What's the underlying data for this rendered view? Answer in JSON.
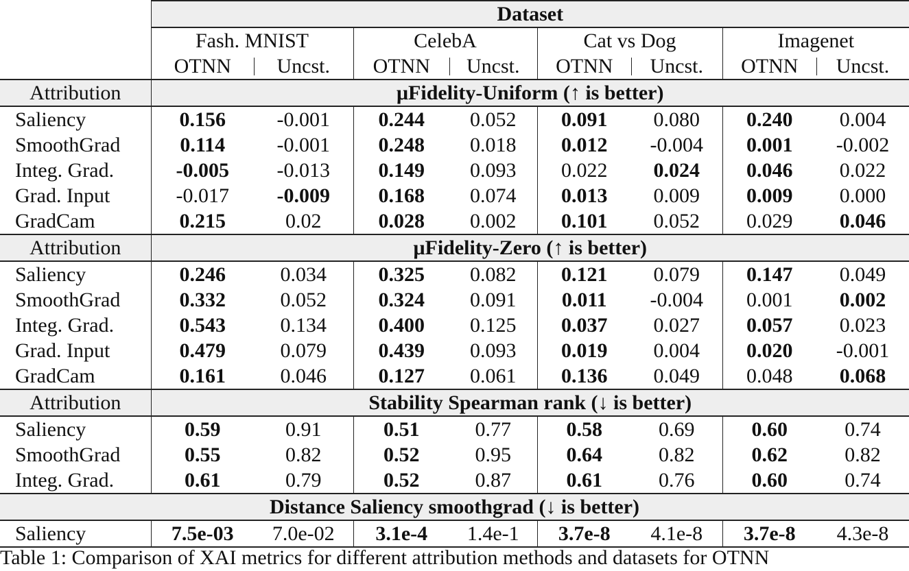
{
  "header": {
    "dataset_label": "Dataset",
    "datasets": [
      "Fash. MNIST",
      "CelebA",
      "Cat vs Dog",
      "Imagenet"
    ],
    "sub_columns": [
      "OTNN",
      "Uncst."
    ]
  },
  "sections": [
    {
      "left_label": "Attribution",
      "title": "μFidelity-Uniform (↑ is better)",
      "rows": [
        {
          "name": "Saliency",
          "values": [
            "0.156",
            "-0.001",
            "0.244",
            "0.052",
            "0.091",
            "0.080",
            "0.240",
            "0.004"
          ],
          "bold": [
            0,
            2,
            4,
            6
          ]
        },
        {
          "name": "SmoothGrad",
          "values": [
            "0.114",
            "-0.001",
            "0.248",
            "0.018",
            "0.012",
            "-0.004",
            "0.001",
            "-0.002"
          ],
          "bold": [
            0,
            2,
            4,
            6
          ]
        },
        {
          "name": "Integ. Grad.",
          "values": [
            "-0.005",
            "-0.013",
            "0.149",
            "0.093",
            "0.022",
            "0.024",
            "0.046",
            "0.022"
          ],
          "bold": [
            0,
            2,
            5,
            6
          ]
        },
        {
          "name": "Grad. Input",
          "values": [
            "-0.017",
            "-0.009",
            "0.168",
            "0.074",
            "0.013",
            "0.009",
            "0.009",
            "0.000"
          ],
          "bold": [
            1,
            2,
            4,
            6
          ]
        },
        {
          "name": "GradCam",
          "values": [
            "0.215",
            "0.02",
            "0.028",
            "0.002",
            "0.101",
            "0.052",
            "0.029",
            "0.046"
          ],
          "bold": [
            0,
            2,
            4,
            7
          ]
        }
      ]
    },
    {
      "left_label": "Attribution",
      "title": "μFidelity-Zero (↑ is better)",
      "rows": [
        {
          "name": "Saliency",
          "values": [
            "0.246",
            "0.034",
            "0.325",
            "0.082",
            "0.121",
            "0.079",
            "0.147",
            "0.049"
          ],
          "bold": [
            0,
            2,
            4,
            6
          ]
        },
        {
          "name": "SmoothGrad",
          "values": [
            "0.332",
            "0.052",
            "0.324",
            "0.091",
            "0.011",
            "-0.004",
            "0.001",
            "0.002"
          ],
          "bold": [
            0,
            2,
            4,
            7
          ]
        },
        {
          "name": "Integ. Grad.",
          "values": [
            "0.543",
            "0.134",
            "0.400",
            "0.125",
            "0.037",
            "0.027",
            "0.057",
            "0.023"
          ],
          "bold": [
            0,
            2,
            4,
            6
          ]
        },
        {
          "name": "Grad. Input",
          "values": [
            "0.479",
            "0.079",
            "0.439",
            "0.093",
            "0.019",
            "0.004",
            "0.020",
            "-0.001"
          ],
          "bold": [
            0,
            2,
            4,
            6
          ]
        },
        {
          "name": "GradCam",
          "values": [
            "0.161",
            "0.046",
            "0.127",
            "0.061",
            "0.136",
            "0.049",
            "0.048",
            "0.068"
          ],
          "bold": [
            0,
            2,
            4,
            7
          ]
        }
      ]
    },
    {
      "left_label": "Attribution",
      "title": "Stability Spearman rank (↓ is better)",
      "rows": [
        {
          "name": "Saliency",
          "values": [
            "0.59",
            "0.91",
            "0.51",
            "0.77",
            "0.58",
            "0.69",
            "0.60",
            "0.74"
          ],
          "bold": [
            0,
            2,
            4,
            6
          ]
        },
        {
          "name": "SmoothGrad",
          "values": [
            "0.55",
            "0.82",
            "0.52",
            "0.95",
            "0.64",
            "0.82",
            "0.62",
            "0.82"
          ],
          "bold": [
            0,
            2,
            4,
            6
          ]
        },
        {
          "name": "Integ. Grad.",
          "values": [
            "0.61",
            "0.79",
            "0.52",
            "0.87",
            "0.61",
            "0.76",
            "0.60",
            "0.74"
          ],
          "bold": [
            0,
            2,
            4,
            6
          ]
        }
      ]
    },
    {
      "left_label": "",
      "title": "Distance Saliency smoothgrad (↓ is better)",
      "rows": [
        {
          "name": "Saliency",
          "values": [
            "7.5e-03",
            "7.0e-02",
            "3.1e-4",
            "1.4e-1",
            "3.7e-8",
            "4.1e-8",
            "3.7e-8",
            "4.3e-8"
          ],
          "bold": [
            0,
            2,
            4,
            6
          ]
        }
      ]
    }
  ],
  "caption": "Table 1: Comparison of XAI metrics for different attribution methods and datasets for OTNN"
}
